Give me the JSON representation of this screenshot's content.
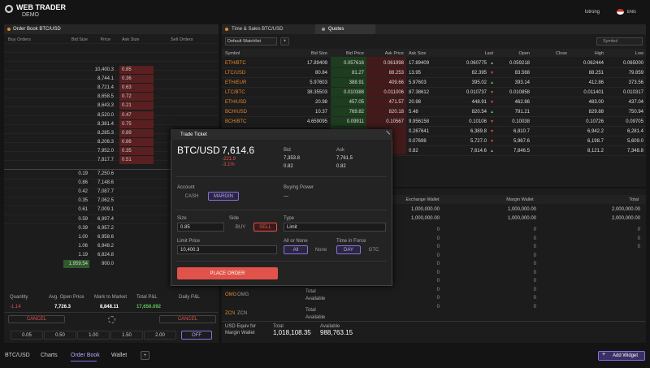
{
  "header": {
    "logo": "WEB TRADER",
    "sub": "DEMO",
    "user": "lstrong",
    "language": "ENG"
  },
  "order_book": {
    "title": "Order Book BTC/USD",
    "columns": [
      "Buy Orders",
      "Bid Size",
      "Price",
      "Ask Size",
      "Sell Orders"
    ],
    "asks": [
      [
        "10,400.3",
        "0.85"
      ],
      [
        "8,744.1",
        "0.36"
      ],
      [
        "8,721.4",
        "0.63"
      ],
      [
        "8,658.5",
        "0.72"
      ],
      [
        "8,643.3",
        "0.21"
      ],
      [
        "8,520.0",
        "0.47"
      ],
      [
        "8,381.4",
        "0.75"
      ],
      [
        "8,285.3",
        "0.89"
      ],
      [
        "8,206.3",
        "0.86"
      ],
      [
        "7,952.0",
        "0.35"
      ],
      [
        "7,817.7",
        "0.51"
      ]
    ],
    "bids": [
      [
        "0.19",
        "7,250.6"
      ],
      [
        "0.86",
        "7,148.6"
      ],
      [
        "0.42",
        "7,087.7"
      ],
      [
        "0.35",
        "7,062.5"
      ],
      [
        "0.61",
        "7,009.1"
      ],
      [
        "0.59",
        "6,997.4"
      ],
      [
        "0.39",
        "6,957.2"
      ],
      [
        "1.00",
        "6,958.6"
      ],
      [
        "1.06",
        "6,948.2"
      ],
      [
        "1.19",
        "6,824.8"
      ],
      [
        "1,959.54",
        "900.0"
      ]
    ],
    "summary": {
      "labels": [
        "Quantity",
        "Avg. Open Price",
        "Mark to Market",
        "Total P&L",
        "Daily P&L"
      ],
      "values": [
        "-1.14",
        "7,726.3",
        "8,848.11",
        "17,656.092"
      ]
    },
    "cancel": [
      "CANCEL",
      "CANCEL"
    ],
    "sizes": [
      "0.05",
      "0.50",
      "1.00",
      "1.50",
      "2.00"
    ],
    "toggle": "OFF"
  },
  "quotes": {
    "tabs": [
      "Time & Sales BTC/USD",
      "Quotes"
    ],
    "watchlist": "Default Watchlist",
    "search": "Symbol",
    "columns": [
      "Symbol",
      "Bid Size",
      "Bid Price",
      "Ask Price",
      "Ask Size",
      "Last",
      "Open",
      "Close",
      "High",
      "Low"
    ],
    "rows": [
      [
        "ETH/BTC",
        "17.89409",
        "0.057616",
        "0.061998",
        "17.89409",
        "0.060775",
        "▲",
        "0.059218",
        null,
        "0.062444",
        "0.065000"
      ],
      [
        "LTC/USD",
        "80.84",
        "81.27",
        "88.253",
        "13.95",
        "82.395",
        "▼",
        "83.568",
        null,
        "88.251",
        "79.859"
      ],
      [
        "ETH/EUR",
        "5.97603",
        "388.91",
        "409.66",
        "5.97603",
        "395.02",
        "▲",
        "393.14",
        null,
        "412.86",
        "373.56"
      ],
      [
        "LTC/BTC",
        "38.35503",
        "0.010388",
        "0.011006",
        "87.38612",
        "0.010737",
        "▼",
        "0.010858",
        null,
        "0.011401",
        "0.010317"
      ],
      [
        "ETH/USD",
        "20.98",
        "457.05",
        "471.57",
        "20.98",
        "448.91",
        "▼",
        "462.86",
        null,
        "483.00",
        "437.04"
      ],
      [
        "BCH/USD",
        "10.37",
        "769.82",
        "820.18",
        "5.48",
        "820.54",
        "▲",
        "791.21",
        null,
        "829.88",
        "750.94"
      ],
      [
        "BCH/BTC",
        "4.659095",
        "0.09911",
        "0.10567",
        "9.956158",
        "0.10106",
        "▼",
        "0.10038",
        null,
        "0.10726",
        "0.09705"
      ],
      [
        null,
        null,
        null,
        null,
        "0.267641",
        "6,389.8",
        "▼",
        "6,810.7",
        null,
        "6,942.2",
        "6,281.4"
      ],
      [
        null,
        null,
        null,
        null,
        "0.07698",
        "5,727.0",
        "▼",
        "5,967.6",
        null,
        "6,198.7",
        "5,609.0"
      ],
      [
        null,
        null,
        null,
        null,
        "0.82",
        "7,614.6",
        "▲",
        "7,846.5",
        null,
        "8,121.2",
        "7,348.8"
      ]
    ]
  },
  "wallet": {
    "columns": [
      "Exchange Wallet",
      "Margin Wallet",
      "Total"
    ],
    "rows": [
      [
        "1,000,000.00",
        "1,000,000.00",
        "2,000,000.00"
      ],
      [
        "1,000,000.00",
        "1,000,000.00",
        "2,000,000.00"
      ],
      [
        "0",
        "0",
        "0"
      ],
      [
        "0",
        "0",
        "0"
      ],
      [
        "0",
        "0",
        "0"
      ],
      [
        "0",
        "0",
        null
      ],
      [
        "0",
        "0",
        null
      ],
      [
        "0",
        "0",
        null
      ],
      [
        "0",
        "0",
        null
      ],
      [
        "0",
        "0",
        null
      ],
      [
        "0",
        "0",
        null
      ],
      [
        "0",
        "0",
        null
      ]
    ],
    "currencies": [
      {
        "code": "OMG",
        "name": "OMG",
        "labels": [
          "Total",
          "Available"
        ]
      },
      {
        "code": "ZCN",
        "name": "ZCN",
        "labels": [
          "Total",
          "Available"
        ]
      }
    ],
    "usd_equiv": "USD Equiv for Margin Wallet",
    "total_label": "Total",
    "total": "1,018,108.35",
    "available_label": "Available",
    "available": "988,763.15"
  },
  "trade_ticket": {
    "title": "Trade Ticket",
    "symbol": "BTC/USD",
    "price": "7,614.6",
    "change": "-221.9",
    "change_pct": "-3.1%",
    "bid_label": "Bid",
    "bid": "7,353.8",
    "bid_size": "0.82",
    "ask_label": "Ask",
    "ask": "7,761.5",
    "ask_size": "0.82",
    "account_label": "Account",
    "accounts": [
      "CASH",
      "MARGIN"
    ],
    "buying_power_label": "Buying Power",
    "buying_power": "—",
    "size_label": "Size",
    "size": "0.85",
    "side_label": "Side",
    "sides": [
      "BUY",
      "SELL"
    ],
    "type_label": "Type",
    "type": "Limit",
    "limit_label": "Limit Price",
    "limit": "10,400.3",
    "aon_label": "All or None",
    "aon": [
      "All",
      "None"
    ],
    "tif_label": "Time in Force",
    "tif": [
      "DAY",
      "GTC"
    ],
    "submit": "PLACE ORDER"
  },
  "footer": {
    "tabs": [
      "BTC/USD",
      "Charts",
      "Order Book",
      "Wallet"
    ],
    "add": "+",
    "add_widget": "Add Widget"
  }
}
